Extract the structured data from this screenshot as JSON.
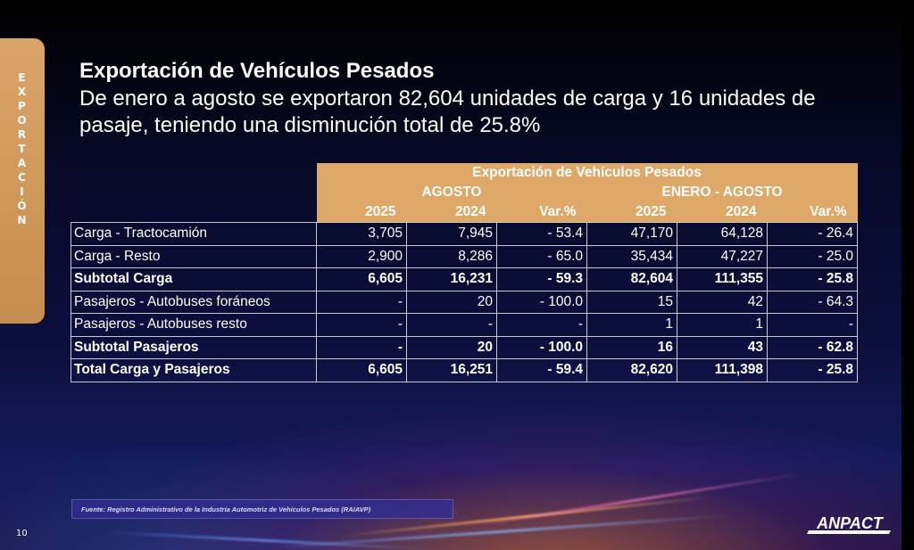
{
  "side_tab": {
    "letters": [
      "E",
      "X",
      "P",
      "O",
      "R",
      "T",
      "A",
      "C",
      "I",
      "Ó",
      "N"
    ]
  },
  "title": "Exportación de Vehículos Pesados",
  "subtitle": "De enero a agosto se exportaron 82,604 unidades de carga y 16 unidades de pasaje, teniendo una disminución total de 25.8%",
  "table": {
    "header_title": "Exportación de Vehículos Pesados",
    "group1": "AGOSTO",
    "group2": "ENERO - AGOSTO",
    "year_headers": [
      "2025",
      "2024",
      "Var.%",
      "2025",
      "2024",
      "Var.%"
    ],
    "rows": [
      {
        "label": "Carga - Tractocamión",
        "values": [
          "3,705",
          "7,945",
          "- 53.4",
          "47,170",
          "64,128",
          "- 26.4"
        ],
        "bold": false
      },
      {
        "label": "Carga - Resto",
        "values": [
          "2,900",
          "8,286",
          "- 65.0",
          "35,434",
          "47,227",
          "- 25.0"
        ],
        "bold": false
      },
      {
        "label": "Subtotal Carga",
        "values": [
          "6,605",
          "16,231",
          "- 59.3",
          "82,604",
          "111,355",
          "- 25.8"
        ],
        "bold": true
      },
      {
        "label": "Pasajeros - Autobuses foráneos",
        "values": [
          "-",
          "20",
          "- 100.0",
          "15",
          "42",
          "- 64.3"
        ],
        "bold": false
      },
      {
        "label": "Pasajeros - Autobuses resto",
        "values": [
          "-",
          "-",
          "-",
          "1",
          "1",
          "-"
        ],
        "bold": false
      },
      {
        "label": "Subtotal Pasajeros",
        "values": [
          "-",
          "20",
          "- 100.0",
          "16",
          "43",
          "- 62.8"
        ],
        "bold": true
      },
      {
        "label": "Total Carga y Pasajeros",
        "values": [
          "6,605",
          "16,251",
          "- 59.4",
          "82,620",
          "111,398",
          "- 25.8"
        ],
        "bold": true
      }
    ]
  },
  "footer": {
    "source": "Fuente: Registro Administrativo de la Industria Automotriz de Vehículos Pesados (RAIAVP)",
    "page_number": "10",
    "logo_text": "ANPACT"
  },
  "colors": {
    "accent": "#dea869",
    "background": "#0b0f3c"
  }
}
